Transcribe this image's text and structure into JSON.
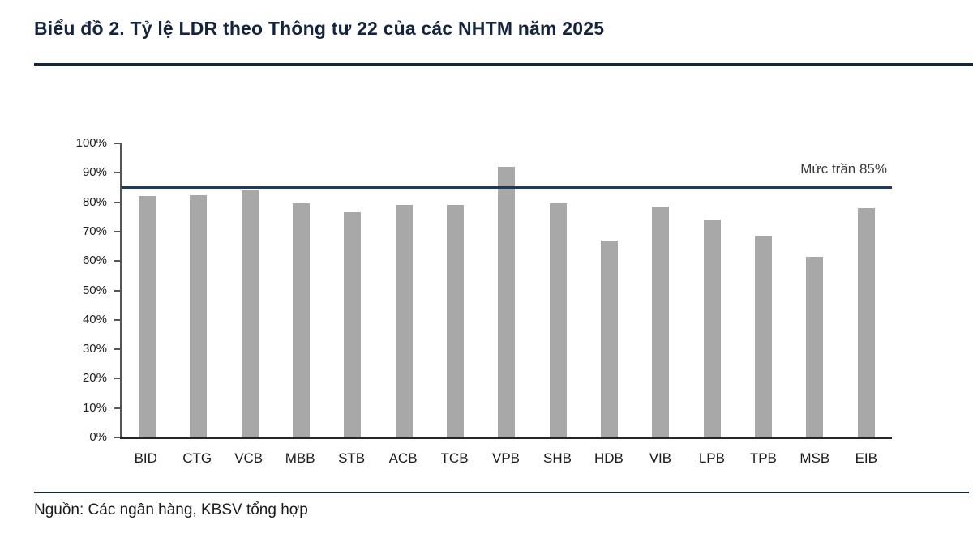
{
  "title": "Biểu đồ 2. Tỷ lệ LDR theo Thông tư 22 của các NHTM năm 2025",
  "source": "Nguồn: Các ngân hàng, KBSV tổng hợp",
  "chart_data": {
    "type": "bar",
    "title": "Biểu đồ 2. Tỷ lệ LDR theo Thông tư 22 của các NHTM năm 2025",
    "categories": [
      "BID",
      "CTG",
      "VCB",
      "MBB",
      "STB",
      "ACB",
      "TCB",
      "VPB",
      "SHB",
      "HDB",
      "VIB",
      "LPB",
      "TPB",
      "MSB",
      "EIB"
    ],
    "values": [
      82,
      82.5,
      84,
      79.5,
      76.5,
      79,
      79,
      92,
      79.5,
      67,
      78.5,
      74,
      68.5,
      61.5,
      78
    ],
    "unit": "%",
    "xlabel": "",
    "ylabel": "",
    "ylim": [
      0,
      100
    ],
    "ytick_labels": [
      "100%",
      "90%",
      "80%",
      "70%",
      "60%",
      "50%",
      "40%",
      "30%",
      "20%",
      "10%",
      "0%"
    ],
    "grid": false,
    "legend": false,
    "bar_color": "#a8a8a8",
    "reference_line": {
      "value": 85,
      "label": "Mức trần 85%",
      "color": "#1f3a5f"
    }
  }
}
